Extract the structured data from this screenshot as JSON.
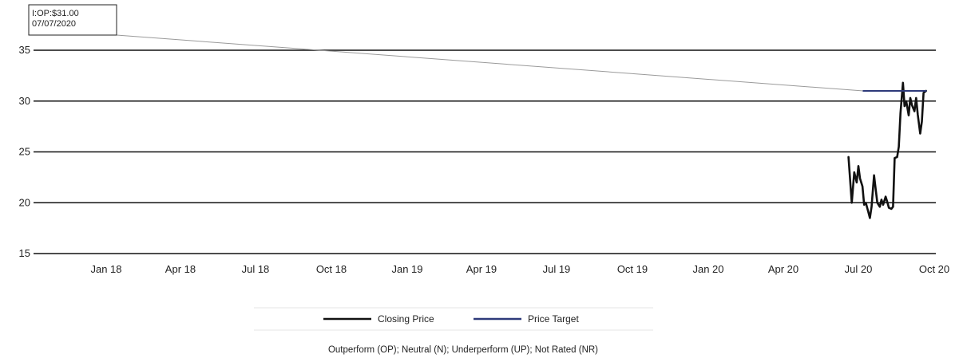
{
  "chart_data": {
    "type": "line",
    "title": "",
    "xlabel": "",
    "ylabel": "",
    "ylim": [
      15,
      36.5
    ],
    "y_ticks": [
      15,
      20,
      25,
      30,
      35
    ],
    "grid": "horizontal",
    "x_ticks": [
      {
        "label": "Jan 18",
        "date": "2018-01-01"
      },
      {
        "label": "Apr 18",
        "date": "2018-04-01"
      },
      {
        "label": "Jul 18",
        "date": "2018-07-01"
      },
      {
        "label": "Oct 18",
        "date": "2018-10-01"
      },
      {
        "label": "Jan 19",
        "date": "2019-01-01"
      },
      {
        "label": "Apr 19",
        "date": "2019-04-01"
      },
      {
        "label": "Jul 19",
        "date": "2019-07-01"
      },
      {
        "label": "Oct 19",
        "date": "2019-10-01"
      },
      {
        "label": "Jan 20",
        "date": "2020-01-01"
      },
      {
        "label": "Apr 20",
        "date": "2020-04-01"
      },
      {
        "label": "Jul 20",
        "date": "2020-07-01"
      },
      {
        "label": "Oct 20",
        "date": "2020-10-01"
      }
    ],
    "series": [
      {
        "name": "Closing Price",
        "color": "#111111",
        "points": [
          [
            "2020-06-19",
            24.5
          ],
          [
            "2020-06-23",
            20.0
          ],
          [
            "2020-06-26",
            23.0
          ],
          [
            "2020-06-29",
            22.0
          ],
          [
            "2020-07-01",
            23.6
          ],
          [
            "2020-07-03",
            22.4
          ],
          [
            "2020-07-06",
            21.6
          ],
          [
            "2020-07-08",
            19.8
          ],
          [
            "2020-07-10",
            20.0
          ],
          [
            "2020-07-13",
            19.1
          ],
          [
            "2020-07-15",
            18.5
          ],
          [
            "2020-07-17",
            19.6
          ],
          [
            "2020-07-20",
            22.7
          ],
          [
            "2020-07-22",
            21.3
          ],
          [
            "2020-07-24",
            20.0
          ],
          [
            "2020-07-27",
            19.6
          ],
          [
            "2020-07-29",
            20.3
          ],
          [
            "2020-07-31",
            19.8
          ],
          [
            "2020-08-03",
            20.6
          ],
          [
            "2020-08-05",
            20.1
          ],
          [
            "2020-08-07",
            19.5
          ],
          [
            "2020-08-10",
            19.4
          ],
          [
            "2020-08-12",
            19.6
          ],
          [
            "2020-08-14",
            24.4
          ],
          [
            "2020-08-17",
            24.5
          ],
          [
            "2020-08-19",
            25.5
          ],
          [
            "2020-08-21",
            28.8
          ],
          [
            "2020-08-24",
            31.8
          ],
          [
            "2020-08-26",
            29.5
          ],
          [
            "2020-08-28",
            30.0
          ],
          [
            "2020-08-31",
            28.6
          ],
          [
            "2020-09-02",
            30.3
          ],
          [
            "2020-09-04",
            29.6
          ],
          [
            "2020-09-07",
            29.0
          ],
          [
            "2020-09-09",
            30.3
          ],
          [
            "2020-09-11",
            28.7
          ],
          [
            "2020-09-14",
            26.8
          ],
          [
            "2020-09-16",
            28.0
          ],
          [
            "2020-09-18",
            30.8
          ],
          [
            "2020-09-21",
            31.0
          ]
        ]
      },
      {
        "name": "Price Target",
        "color": "#2e3a7a",
        "points": [
          [
            "2020-07-07",
            31.0
          ],
          [
            "2020-09-21",
            31.0
          ]
        ]
      }
    ],
    "annotations": [
      {
        "lines": [
          "I:OP:$31.00",
          "07/07/2020"
        ],
        "date": "2020-07-07",
        "value": 31.0
      }
    ],
    "legend_position": "bottom-center"
  },
  "footnote": "Outperform (OP); Neutral (N); Underperform (UP); Not Rated (NR)"
}
